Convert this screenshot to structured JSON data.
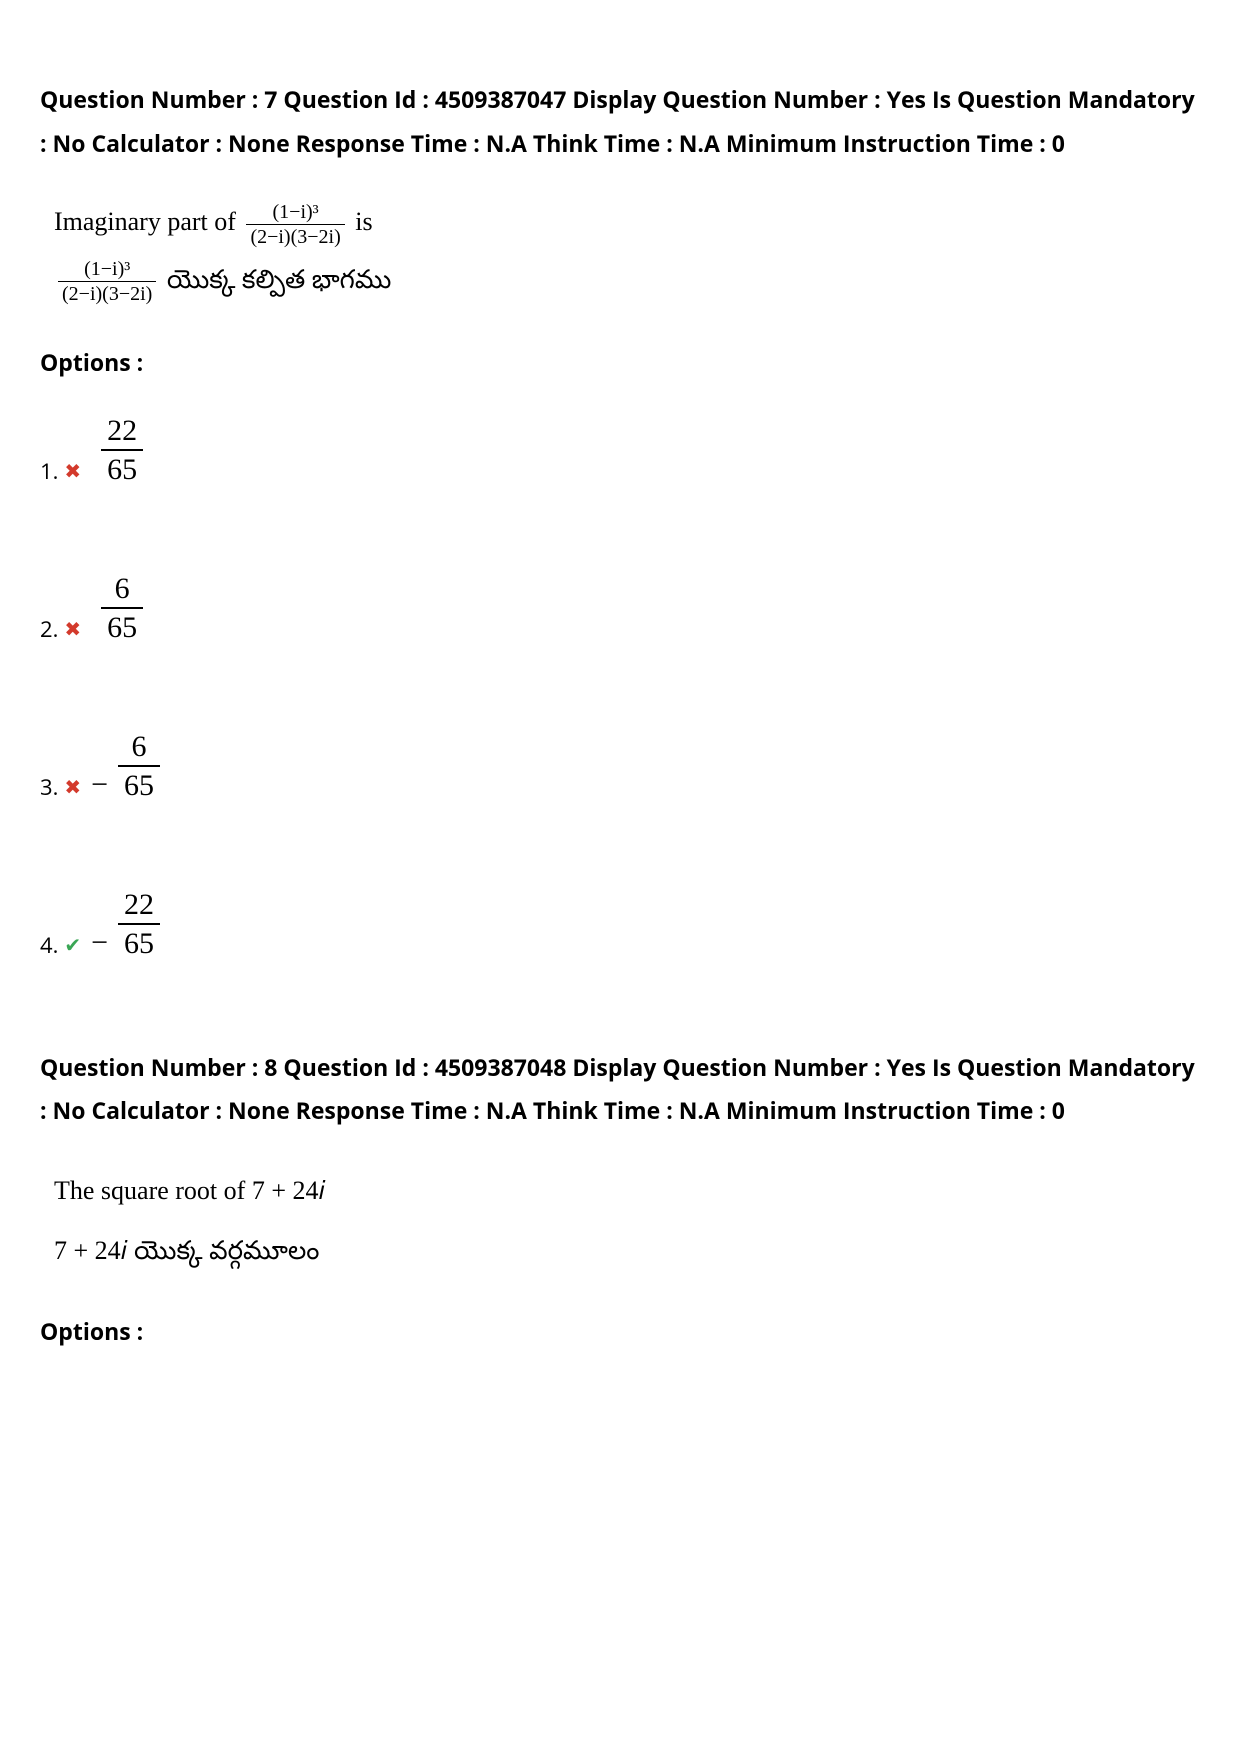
{
  "q7": {
    "meta": "Question Number : 7 Question Id : 4509387047 Display Question Number : Yes Is Question Mandatory : No Calculator : None Response Time : N.A Think Time : N.A Minimum Instruction Time : 0",
    "text_en_prefix": "Imaginary part of ",
    "text_en_suffix": " is",
    "frac_num": "(1−i)³",
    "frac_den": "(2−i)(3−2i)",
    "text_te_suffix": " యొక్క కల్పిత భాగము",
    "options_heading": "Options :",
    "options": [
      {
        "idx": "1.",
        "mark": "✖",
        "mark_class": "wrong",
        "neg": "",
        "num": "22",
        "den": "65"
      },
      {
        "idx": "2.",
        "mark": "✖",
        "mark_class": "wrong",
        "neg": "",
        "num": "6",
        "den": "65"
      },
      {
        "idx": "3.",
        "mark": "✖",
        "mark_class": "wrong",
        "neg": "−",
        "num": "6",
        "den": "65"
      },
      {
        "idx": "4.",
        "mark": "✔",
        "mark_class": "right",
        "neg": "−",
        "num": "22",
        "den": "65"
      }
    ]
  },
  "q8": {
    "meta": "Question Number : 8 Question Id : 4509387048 Display Question Number : Yes Is Question Mandatory : No Calculator : None Response Time : N.A Think Time : N.A Minimum Instruction Time : 0",
    "line_en": "The square root of 7 + 24𝑖",
    "line_te": "7 + 24𝑖 యొక్క వర్గమూలం",
    "options_heading": "Options :"
  },
  "colors": {
    "wrong": "#d33a2c",
    "right": "#3aa655",
    "text": "#000000",
    "background": "#ffffff"
  }
}
